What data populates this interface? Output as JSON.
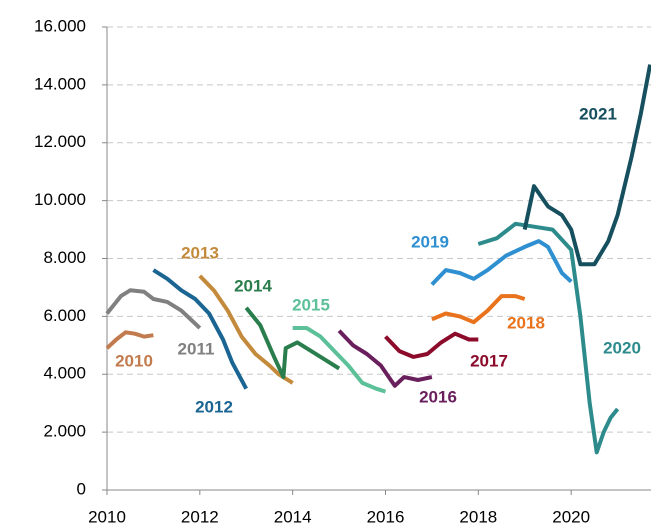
{
  "chart_data": {
    "type": "line",
    "xlim": [
      2010,
      2021.72
    ],
    "xticks": [
      2010,
      2012,
      2014,
      2016,
      2018,
      2020
    ],
    "ylim": [
      0,
      16000
    ],
    "yticks": [
      {
        "value": 0,
        "label": "0"
      },
      {
        "value": 2000,
        "label": "2.000"
      },
      {
        "value": 4000,
        "label": "4.000"
      },
      {
        "value": 6000,
        "label": "6.000"
      },
      {
        "value": 8000,
        "label": "8.000"
      },
      {
        "value": 10000,
        "label": "10.000"
      },
      {
        "value": 12000,
        "label": "12.000"
      },
      {
        "value": 14000,
        "label": "14.000"
      },
      {
        "value": 16000,
        "label": "16.000"
      }
    ],
    "grid": true,
    "series": [
      {
        "name": "2010",
        "color": "#c27b4e",
        "x": [
          2010,
          2010.2,
          2010.4,
          2010.6,
          2010.8,
          2011
        ],
        "values": [
          4900,
          5200,
          5450,
          5400,
          5300,
          5350
        ]
      },
      {
        "name": "2011",
        "color": "#808080",
        "x": [
          2010,
          2010.3,
          2010.5,
          2010.8,
          2011,
          2011.3,
          2011.6,
          2012
        ],
        "values": [
          6100,
          6700,
          6900,
          6850,
          6600,
          6500,
          6200,
          5600
        ]
      },
      {
        "name": "2012",
        "color": "#1b6593",
        "x": [
          2011,
          2011.3,
          2011.6,
          2011.9,
          2012.2,
          2012.5,
          2012.7,
          2013
        ],
        "values": [
          7600,
          7300,
          6900,
          6600,
          6100,
          5200,
          4400,
          3500
        ]
      },
      {
        "name": "2013",
        "color": "#c48a3c",
        "x": [
          2012,
          2012.3,
          2012.6,
          2012.9,
          2013.2,
          2013.5,
          2013.7,
          2014
        ],
        "values": [
          7400,
          6900,
          6200,
          5300,
          4700,
          4300,
          4000,
          3700
        ]
      },
      {
        "name": "2014",
        "color": "#2a7d4c",
        "x": [
          2013,
          2013.3,
          2013.6,
          2013.8,
          2013.85,
          2014.1,
          2014.4,
          2014.7,
          2015
        ],
        "values": [
          6300,
          5700,
          4600,
          3900,
          4900,
          5100,
          4800,
          4500,
          4200
        ]
      },
      {
        "name": "2015",
        "color": "#5cc098",
        "x": [
          2014,
          2014.3,
          2014.6,
          2014.9,
          2015.2,
          2015.5,
          2015.8,
          2016
        ],
        "values": [
          5600,
          5600,
          5300,
          4800,
          4300,
          3700,
          3500,
          3400
        ]
      },
      {
        "name": "2016",
        "color": "#6a1f5d",
        "x": [
          2015,
          2015.3,
          2015.6,
          2015.9,
          2016.2,
          2016.4,
          2016.7,
          2017
        ],
        "values": [
          5500,
          5000,
          4700,
          4300,
          3600,
          3900,
          3800,
          3900
        ]
      },
      {
        "name": "2017",
        "color": "#8c0b2b",
        "x": [
          2016,
          2016.3,
          2016.6,
          2016.9,
          2017.2,
          2017.5,
          2017.8,
          2018
        ],
        "values": [
          5300,
          4800,
          4600,
          4700,
          5100,
          5400,
          5200,
          5200
        ]
      },
      {
        "name": "2018",
        "color": "#e8731c",
        "x": [
          2017,
          2017.3,
          2017.6,
          2017.9,
          2018.2,
          2018.5,
          2018.8,
          2019
        ],
        "values": [
          5900,
          6100,
          6000,
          5800,
          6200,
          6700,
          6700,
          6600
        ]
      },
      {
        "name": "2019",
        "color": "#2e8fd1",
        "x": [
          2017,
          2017.3,
          2017.6,
          2017.9,
          2018.2,
          2018.6,
          2019,
          2019.3,
          2019.5,
          2019.8,
          2020
        ],
        "values": [
          7100,
          7600,
          7500,
          7300,
          7600,
          8100,
          8400,
          8600,
          8400,
          7500,
          7200
        ]
      },
      {
        "name": "2020",
        "color": "#2d8b8c",
        "x": [
          2018,
          2018.4,
          2018.8,
          2019.2,
          2019.6,
          2020,
          2020.2,
          2020.4,
          2020.55,
          2020.7,
          2020.85,
          2021
        ],
        "values": [
          8500,
          8700,
          9200,
          9100,
          9000,
          8300,
          6000,
          3000,
          1300,
          2000,
          2500,
          2800
        ]
      },
      {
        "name": "2021",
        "color": "#164f5e",
        "x": [
          2019,
          2019.2,
          2019.5,
          2019.8,
          2020,
          2020.2,
          2020.5,
          2020.8,
          2021,
          2021.3,
          2021.5,
          2021.7
        ],
        "values": [
          9000,
          10500,
          9800,
          9500,
          9000,
          7800,
          7800,
          8600,
          9500,
          11500,
          13000,
          14700
        ]
      }
    ]
  }
}
